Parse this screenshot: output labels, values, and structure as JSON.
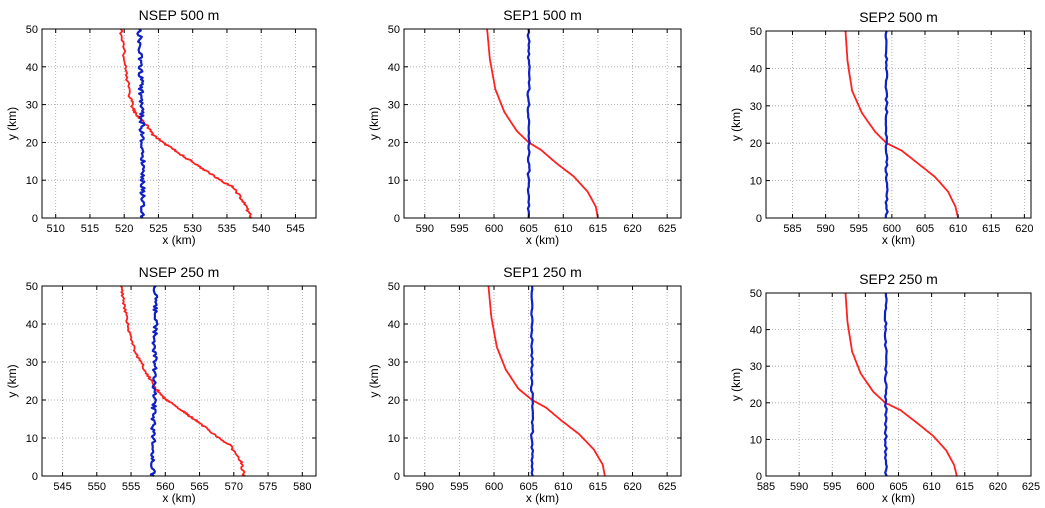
{
  "colors": {
    "red_series": "#ff2020",
    "blue_series": "#1020c8",
    "grid": "#a0a0a0"
  },
  "chart_data": [
    {
      "type": "line",
      "title": "NSEP 500 m",
      "xlabel": "x (km)",
      "ylabel": "y (km)",
      "xlim": [
        508,
        548
      ],
      "ylim": [
        0,
        50
      ],
      "xticks": [
        510,
        515,
        520,
        525,
        530,
        535,
        540,
        545
      ],
      "yticks": [
        0,
        10,
        20,
        30,
        40,
        50
      ],
      "grid": true,
      "series": [
        {
          "color": "red",
          "jitter": 0.25,
          "x": [
            538.5,
            537.5,
            536,
            534,
            531.5,
            529,
            526.5,
            524.5,
            523,
            521.5,
            521,
            520.5,
            520,
            519.5
          ],
          "y": [
            0,
            4,
            8,
            10,
            13,
            16,
            19,
            21.5,
            25,
            28,
            31,
            36,
            43,
            50
          ]
        },
        {
          "color": "blue",
          "jitter": 0.35,
          "x": [
            522.8,
            522.7,
            522.6,
            522.8,
            522.5,
            522.6,
            522.4,
            522.5,
            522.3,
            522.4,
            522.2
          ],
          "y": [
            0,
            5,
            10,
            15,
            20,
            25,
            30,
            35,
            40,
            45,
            50
          ]
        }
      ]
    },
    {
      "type": "line",
      "title": "SEP1 500 m",
      "xlabel": "x (km)",
      "ylabel": "y (km)",
      "xlim": [
        587,
        627
      ],
      "ylim": [
        0,
        50
      ],
      "xticks": [
        590,
        595,
        600,
        605,
        610,
        615,
        620,
        625
      ],
      "yticks": [
        0,
        10,
        20,
        30,
        40,
        50
      ],
      "grid": true,
      "series": [
        {
          "color": "red",
          "jitter": 0,
          "x": [
            615,
            614.7,
            613.5,
            611.5,
            609,
            606.8,
            605,
            603.3,
            601.5,
            600.2,
            599.4,
            599
          ],
          "y": [
            0,
            3,
            7,
            11,
            14.5,
            18,
            20,
            23,
            28,
            34,
            42,
            50
          ]
        },
        {
          "color": "blue",
          "jitter": 0.15,
          "x": [
            605,
            605,
            605,
            605,
            605,
            605
          ],
          "y": [
            0,
            10,
            20,
            30,
            40,
            50
          ]
        }
      ]
    },
    {
      "type": "line",
      "title": "SEP2 500 m",
      "xlabel": "x (km)",
      "ylabel": "y (km)",
      "xlim": [
        581,
        621
      ],
      "ylim": [
        0,
        50
      ],
      "xticks": [
        585,
        590,
        595,
        600,
        605,
        610,
        615,
        620
      ],
      "yticks": [
        0,
        10,
        20,
        30,
        40,
        50
      ],
      "grid": true,
      "series": [
        {
          "color": "red",
          "jitter": 0,
          "x": [
            610,
            609.6,
            608.5,
            606.5,
            604,
            601.5,
            599.2,
            597.5,
            595.5,
            594,
            593.3,
            593
          ],
          "y": [
            0,
            3,
            7,
            11,
            14.5,
            18,
            20,
            23,
            28,
            34,
            42,
            50
          ]
        },
        {
          "color": "blue",
          "jitter": 0.15,
          "x": [
            599.2,
            599.2,
            599.2,
            599.2,
            599.2,
            599.2
          ],
          "y": [
            0,
            10,
            20,
            30,
            40,
            50
          ]
        }
      ]
    },
    {
      "type": "line",
      "title": "NSEP 250 m",
      "xlabel": "x (km)",
      "ylabel": "y (km)",
      "xlim": [
        542,
        582
      ],
      "ylim": [
        0,
        50
      ],
      "xticks": [
        545,
        550,
        555,
        560,
        565,
        570,
        575,
        580
      ],
      "yticks": [
        0,
        10,
        20,
        30,
        40,
        50
      ],
      "grid": true,
      "series": [
        {
          "color": "red",
          "jitter": 0.2,
          "x": [
            571.5,
            571,
            569.5,
            567,
            565,
            563,
            561,
            559.5,
            558.3,
            557,
            555.5,
            554.5,
            554,
            553.5
          ],
          "y": [
            0,
            4,
            8,
            11,
            14,
            16.5,
            19,
            21,
            24,
            28,
            33,
            40,
            45,
            50
          ]
        },
        {
          "color": "blue",
          "jitter": 0.3,
          "x": [
            558.2,
            558.1,
            558.3,
            558.2,
            558.4,
            558.3,
            558.5,
            558.4,
            558.6,
            558.5,
            558.6
          ],
          "y": [
            0,
            5,
            10,
            15,
            20,
            25,
            30,
            35,
            40,
            45,
            50
          ]
        }
      ]
    },
    {
      "type": "line",
      "title": "SEP1 250 m",
      "xlabel": "x (km)",
      "ylabel": "y (km)",
      "xlim": [
        587,
        627
      ],
      "ylim": [
        0,
        50
      ],
      "xticks": [
        590,
        595,
        600,
        605,
        610,
        615,
        620,
        625
      ],
      "yticks": [
        0,
        10,
        20,
        30,
        40,
        50
      ],
      "grid": true,
      "series": [
        {
          "color": "red",
          "jitter": 0,
          "x": [
            616,
            615.7,
            614.4,
            612.3,
            609.8,
            607.5,
            605.5,
            603.5,
            601.7,
            600.4,
            599.6,
            599.2
          ],
          "y": [
            0,
            3,
            7,
            11,
            14.5,
            18,
            20,
            23,
            28,
            34,
            42,
            50
          ]
        },
        {
          "color": "blue",
          "jitter": 0.15,
          "x": [
            605.5,
            605.5,
            605.5,
            605.5,
            605.5,
            605.5
          ],
          "y": [
            0,
            10,
            20,
            30,
            40,
            50
          ]
        }
      ]
    },
    {
      "type": "line",
      "title": "SEP2 250 m",
      "xlabel": "x (km)",
      "ylabel": "y (km)",
      "xlim": [
        585,
        625
      ],
      "ylim": [
        0,
        50
      ],
      "xticks": [
        585,
        590,
        595,
        600,
        605,
        610,
        615,
        620,
        625
      ],
      "yticks": [
        0,
        10,
        20,
        30,
        40,
        50
      ],
      "grid": true,
      "series": [
        {
          "color": "red",
          "jitter": 0,
          "x": [
            613.8,
            613.4,
            612.2,
            610.2,
            607.8,
            605.3,
            603,
            601.2,
            599.3,
            598,
            597.3,
            597
          ],
          "y": [
            0,
            3,
            7,
            11,
            14.5,
            18,
            20,
            23,
            28,
            34,
            42,
            50
          ]
        },
        {
          "color": "blue",
          "jitter": 0.15,
          "x": [
            603.1,
            603.1,
            603.1,
            603.1,
            603.1,
            603.1
          ],
          "y": [
            0,
            10,
            20,
            30,
            40,
            50
          ]
        }
      ]
    }
  ]
}
